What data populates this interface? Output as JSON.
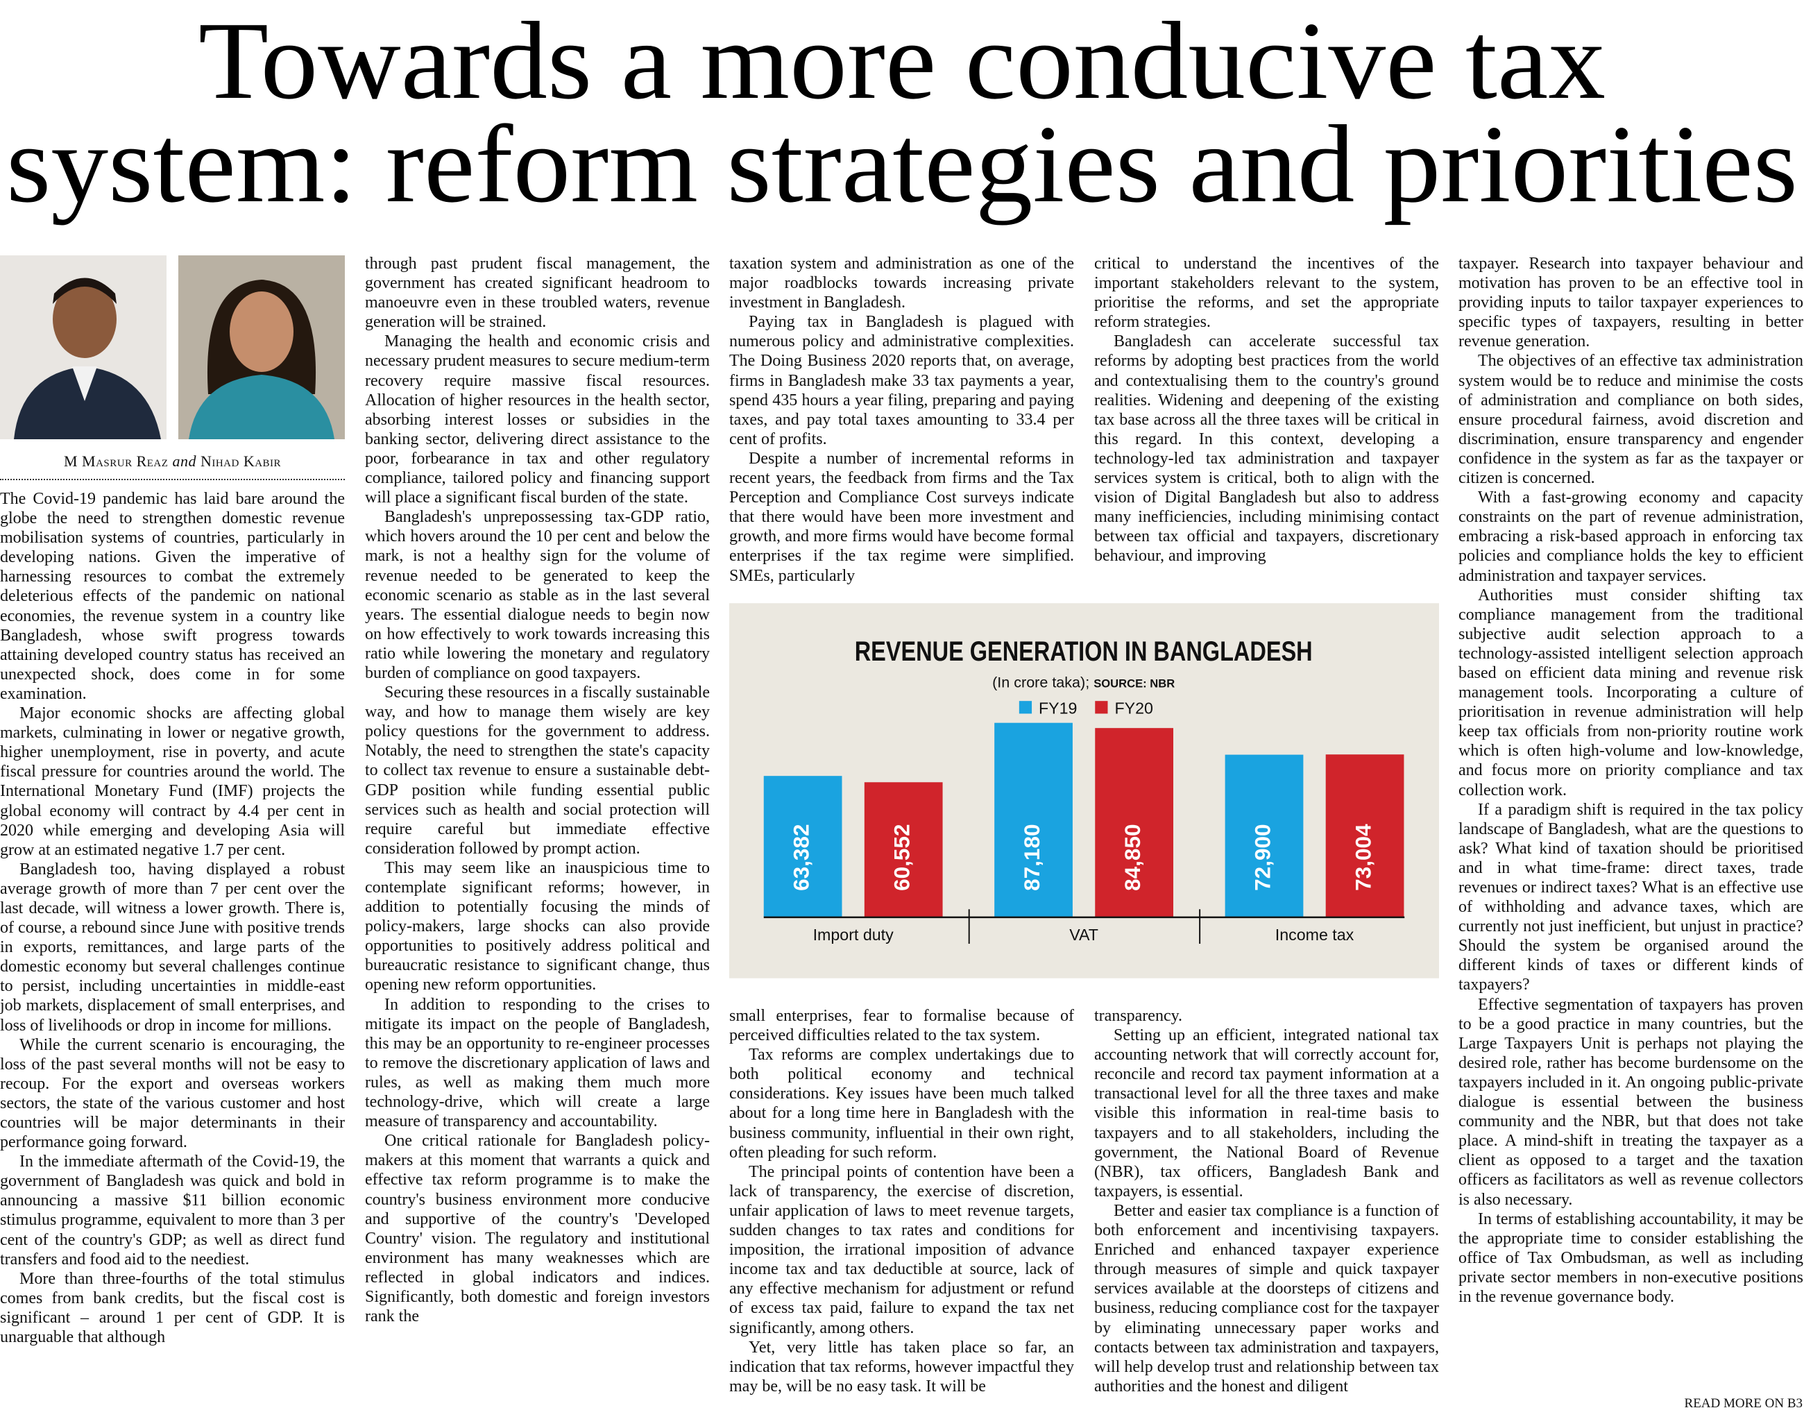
{
  "header": {
    "title_lines": [
      "Towards a more conducive tax",
      "system: reform strategies and priorities"
    ]
  },
  "byline": {
    "author1": "M Masrur Reaz",
    "conjunction": "and",
    "author2": "Nihad Kabir"
  },
  "article": {
    "blocks": [
      {
        "paragraphs": [
          "The Covid-19 pandemic has laid bare around the globe the need to strengthen domestic revenue mobilisation systems of countries, particularly in developing nations. Given the imperative of harnessing resources to combat the extremely deleterious effects of the pandemic on national economies, the revenue system in a country like Bangladesh, whose swift progress towards attaining developed country status has received an unexpected shock, does come in for some examination.",
          "Major economic shocks are affecting global markets, culminating in lower or negative growth, higher unemployment, rise in poverty, and acute fiscal pressure for countries around the world. The International Monetary Fund (IMF) projects the global economy will contract by 4.4 per cent in 2020 while emerging and developing Asia will grow at an estimated negative 1.7 per cent.",
          "Bangladesh too, having displayed a robust average growth of more than 7 per cent over the last decade, will witness a lower growth. There is, of course, a rebound since June with positive trends in exports, remittances, and large parts of the domestic economy but several challenges continue to persist, including uncertainties in middle-east job markets, displacement of small enterprises, and loss of livelihoods or drop in income for millions.",
          "While the current scenario is encouraging, the loss of the past several months will not be easy to recoup. For the export and overseas workers sectors, the state of the various customer and host countries will be major determinants in their performance going forward.",
          "In the immediate aftermath of the Covid-19, the government of Bangladesh was quick and bold in announcing a massive $11 billion economic stimulus programme, equivalent to more than 3 per cent of the country's GDP; as well as direct fund transfers and food aid to the neediest.",
          "More than three-fourths of the total stimulus comes from bank credits, but the fiscal cost is significant – around 1 per cent of GDP. It is unarguable that although"
        ]
      },
      {
        "paragraphs": [
          "through past prudent fiscal management, the government has created significant headroom to manoeuvre even in these troubled waters, revenue generation will be strained.",
          "Managing the health and economic crisis and necessary prudent measures to secure medium-term recovery require massive fiscal resources. Allocation of higher resources in the health sector, absorbing interest losses or subsidies in the banking sector, delivering direct assistance to the poor, forbearance in tax and other regulatory compliance, tailored policy and financing support will place a significant fiscal burden of the state.",
          "Bangladesh's unprepossessing tax-GDP ratio, which hovers around the 10 per cent and below the mark, is not a healthy sign for the volume of revenue needed to be generated to keep the economic scenario as stable as in the last several years. The essential dialogue needs to begin now on how effectively to work towards increasing this ratio while lowering the monetary and regulatory burden of compliance on good taxpayers.",
          "Securing these resources in a fiscally sustainable way, and how to manage them wisely are key policy questions for the government to address. Notably, the need to strengthen the state's capacity to collect tax revenue to ensure a sustainable debt-GDP position while funding essential public services such as health and social protection will require careful but immediate effective consideration followed by prompt action.",
          "This may seem like an inauspicious time to contemplate significant reforms; however, in addition to potentially focusing the minds of policy-makers, large shocks can also provide opportunities to positively address political and bureaucratic resistance to significant change, thus opening new reform opportunities.",
          "In addition to responding to the crises to mitigate its impact on the people of Bangladesh, this may be an opportunity to re-engineer processes to remove the discretionary application of laws and rules, as well as making them much more technology-drive, which will create a large measure of transparency and accountability.",
          "One critical rationale for Bangladesh policy-makers at this moment that warrants a quick and effective tax reform programme is to make the country's business environment more conducive and supportive of the country's 'Developed Country' vision. The regulatory and institutional environment has many weaknesses which are reflected in global indicators and indices. Significantly, both domestic and foreign investors rank the"
        ]
      },
      {
        "paragraphs": [
          "taxation system and administration as one of the major roadblocks towards increasing private investment in Bangladesh.",
          "Paying tax in Bangladesh is plagued with numerous policy and administrative complexities. The Doing Business 2020 reports that, on average, firms in Bangladesh make 33 tax payments a year, spend 435 hours a year filing, preparing and paying taxes, and pay total taxes amounting to 33.4 per cent of profits.",
          "Despite a number of incremental reforms in recent years, the feedback from firms and the Tax Perception and Compliance Cost surveys indicate that there would have been more investment and growth, and more firms would have become formal enterprises if the tax regime were simplified. SMEs, particularly"
        ]
      },
      {
        "paragraphs": [
          "critical to understand the incentives of the important stakeholders relevant to the system, prioritise the reforms, and set the appropriate reform strategies.",
          "Bangladesh can accelerate successful tax reforms by adopting best practices from the world and contextualising them to the country's ground realities. Widening and deepening of the existing tax base across all the three taxes will be critical in this regard. In this context, developing a technology-led tax administration and taxpayer services system is critical, both to align with the vision of Digital Bangladesh but also to address many inefficiencies, including minimising contact between tax official and taxpayers, discretionary behaviour, and improving"
        ]
      },
      {
        "paragraphs": [
          "small enterprises, fear to formalise because of perceived difficulties related to the tax system.",
          "Tax reforms are complex undertakings due to both political economy and technical considerations. Key issues have been much talked about for a long time here in Bangladesh with the business community, influential in their own right, often pleading for such reform.",
          "The principal points of contention have been a lack of transparency, the exercise of discretion, unfair application of laws to meet revenue targets, sudden changes to tax rates and conditions for imposition, the irrational imposition of advance income tax and tax deductible at source, lack of any effective mechanism for adjustment or refund of excess tax paid, failure to expand the tax net significantly, among others.",
          "Yet, very little has taken place so far, an indication that tax reforms, however impactful they may be, will be no easy task. It will be"
        ]
      },
      {
        "paragraphs": [
          "transparency.",
          "Setting up an efficient, integrated national tax accounting network that will correctly account for, reconcile and record tax payment information at a transactional level for all the three taxes and make visible this information in real-time basis to taxpayers and to all stakeholders, including the government, the National Board of Revenue (NBR), tax officers, Bangladesh Bank and taxpayers, is essential.",
          "Better and easier tax compliance is a function of both enforcement and incentivising taxpayers. Enriched and enhanced taxpayer experience through measures of simple and quick taxpayer services available at the doorsteps of citizens and business, reducing compliance cost for the taxpayer by eliminating unnecessary paper works and contacts between tax administration and taxpayers, will help develop trust and relationship between tax authorities and the honest and diligent"
        ]
      },
      {
        "paragraphs": [
          "taxpayer. Research into taxpayer behaviour and motivation has proven to be an effective tool in providing inputs to tailor taxpayer experiences to specific types of taxpayers, resulting in better revenue generation.",
          "The objectives of an effective tax administration system would be to reduce and minimise the costs of administration and compliance on both sides, ensure procedural fairness, avoid discretion and discrimination, ensure transparency and engender confidence in the system as far as the taxpayer or citizen is concerned.",
          "With a fast-growing economy and capacity constraints on the part of revenue administration, embracing a risk-based approach in enforcing tax policies and compliance holds the key to efficient administration and taxpayer services.",
          "Authorities must consider shifting tax compliance management from the traditional subjective audit selection approach to a technology-assisted intelligent selection approach based on efficient data mining and revenue risk management tools. Incorporating a culture of prioritisation in revenue administration will help keep tax officials from non-priority routine work which is often high-volume and low-knowledge, and focus more on priority compliance and tax collection work.",
          "If a paradigm shift is required in the tax policy landscape of Bangladesh, what are the questions to ask? What kind of taxation should be prioritised and in what time-frame: direct taxes, trade revenues or indirect taxes? What is an effective use of withholding and advance taxes, which are currently not just inefficient, but unjust in practice? Should the system be organised around the different kinds of taxes or different kinds of taxpayers?",
          "Effective segmentation of taxpayers has proven to be a good practice in many countries, but the Large Taxpayers Unit is perhaps not playing the desired role, rather has become burdensome on the taxpayers included in it. An ongoing public-private dialogue is essential between the business community and the NBR, but that does not take place. A mind-shift in treating the taxpayer as a client as opposed to a target and the taxation officers as facilitators as well as revenue collectors is also necessary.",
          "In terms of establishing accountability, it may be the appropriate time to consider establishing the office of Tax Ombudsman, as well as including private sector members in non-executive positions in the revenue governance body."
        ]
      }
    ],
    "continuation": "READ MORE ON B3"
  },
  "chart_data": {
    "type": "bar",
    "title": "REVENUE GENERATION IN BANGLADESH",
    "subtitle": "(In crore taka);",
    "source": "SOURCE: NBR",
    "categories": [
      "Import duty",
      "VAT",
      "Income tax"
    ],
    "series": [
      {
        "name": "FY19",
        "color": "#1aa3e0",
        "values": [
          63382,
          87180,
          72900
        ],
        "value_labels": [
          "63,382",
          "87,180",
          "72,900"
        ]
      },
      {
        "name": "FY20",
        "color": "#d0242b",
        "values": [
          60552,
          84850,
          73004
        ],
        "value_labels": [
          "60,552",
          "84,850",
          "73,004"
        ]
      }
    ]
  }
}
